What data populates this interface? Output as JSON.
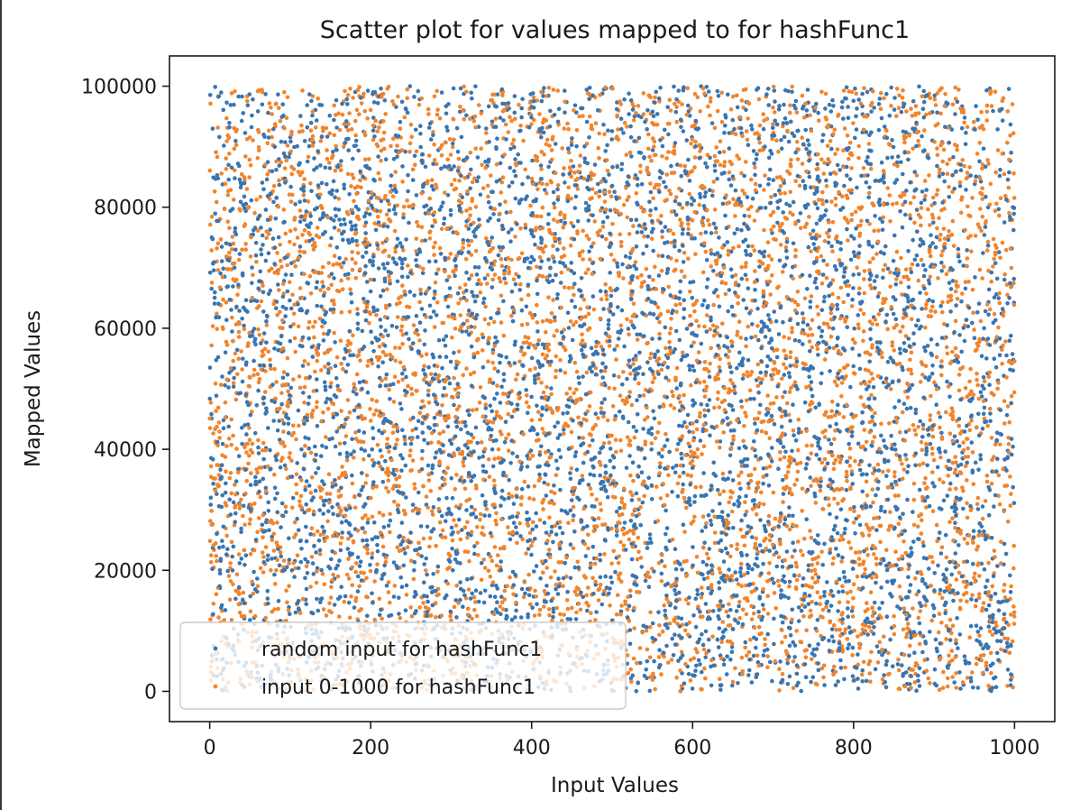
{
  "chart_data": {
    "type": "scatter",
    "title": "Scatter plot for values mapped to for hashFunc1",
    "xlabel": "Input Values",
    "ylabel": "Mapped Values",
    "xlim": [
      -50,
      1050
    ],
    "ylim": [
      -5000,
      105000
    ],
    "xticks": [
      0,
      200,
      400,
      600,
      800,
      1000
    ],
    "yticks": [
      0,
      20000,
      40000,
      60000,
      80000,
      100000
    ],
    "grid": false,
    "legend_position": "lower-left",
    "series": [
      {
        "name": "random input for hashFunc1",
        "color": "#3a75b0",
        "marker": "dot",
        "count": 5000,
        "x_range": [
          0,
          1000
        ],
        "y_range": [
          0,
          100000
        ],
        "distribution": "uniform"
      },
      {
        "name": "input 0-1000 for hashFunc1",
        "color": "#f0852d",
        "marker": "dot",
        "count": 5000,
        "x_range": [
          0,
          1000
        ],
        "y_range": [
          0,
          100000
        ],
        "distribution": "uniform"
      }
    ]
  }
}
